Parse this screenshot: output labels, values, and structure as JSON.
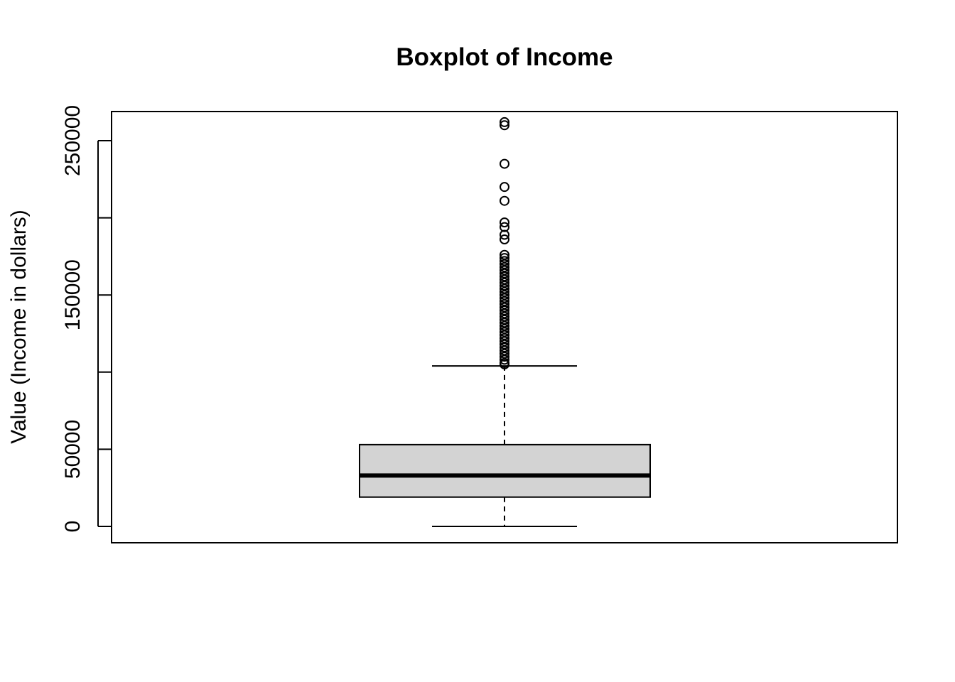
{
  "chart_data": {
    "type": "boxplot",
    "title": "Boxplot of Income",
    "xlabel": "",
    "ylabel": "Value (Income in dollars)",
    "ylim": [
      -10000,
      270000
    ],
    "yticks": [
      0,
      50000,
      100000,
      150000,
      200000,
      250000
    ],
    "ytick_labels": [
      "0",
      "50000",
      "",
      "150000",
      "",
      "250000"
    ],
    "grid": false,
    "box": {
      "min": 0,
      "q1": 19000,
      "median": 33000,
      "q3": 53000,
      "max": 104000,
      "fill": "#d3d3d3"
    },
    "outliers": [
      262000,
      260000,
      235000,
      220000,
      211000,
      197000,
      194000,
      189000,
      186000,
      176000,
      174000,
      172000,
      170000,
      168000,
      166000,
      164000,
      162000,
      160000,
      158000,
      156000,
      154000,
      152000,
      150000,
      148000,
      146000,
      144000,
      142000,
      140000,
      138000,
      136000,
      134000,
      132000,
      130000,
      128000,
      126000,
      124000,
      122000,
      120000,
      118000,
      116000,
      114000,
      112000,
      110000,
      108000,
      106000,
      105000
    ]
  }
}
